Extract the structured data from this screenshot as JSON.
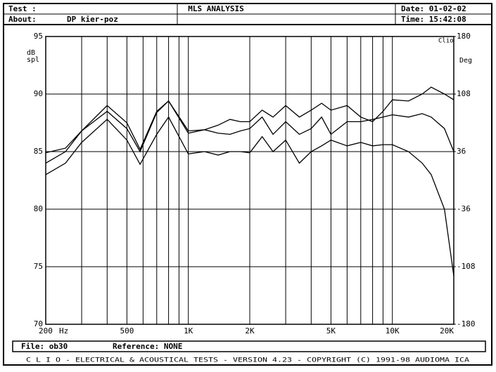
{
  "header": {
    "test": "Test :",
    "about": "About:",
    "about_value": "DP kier-poz",
    "date": "Date: 01-02-02",
    "time": "Time: 15:42:08"
  },
  "chart_data": {
    "type": "line",
    "title": "MLS ANALYSIS",
    "y_label_top": "dB",
    "y_label_bottom": "spl",
    "y2_label": "Deg",
    "brand": "Clio",
    "x_unit": "Hz",
    "x": [
      200,
      250,
      300,
      400,
      500,
      580,
      700,
      800,
      1000,
      1200,
      1400,
      1600,
      1800,
      2000,
      2300,
      2600,
      3000,
      3500,
      4000,
      4500,
      5000,
      6000,
      7000,
      8000,
      9000,
      10000,
      12000,
      14000,
      15500,
      18000,
      20000
    ],
    "series": [
      {
        "color": "#000000",
        "values": [
          84.9,
          85.3,
          86.8,
          89.0,
          87.5,
          85.2,
          88.5,
          89.4,
          86.8,
          86.9,
          87.3,
          87.8,
          87.6,
          87.6,
          88.6,
          88.0,
          89.0,
          88.0,
          88.6,
          89.2,
          88.6,
          89.0,
          88.0,
          87.6,
          88.5,
          89.5,
          89.4,
          90.0,
          90.6,
          90.0,
          89.5
        ]
      },
      {
        "color": "#000000",
        "values": [
          84.0,
          85.0,
          86.8,
          88.5,
          87.0,
          85.0,
          88.4,
          89.4,
          86.6,
          86.9,
          86.6,
          86.5,
          86.8,
          87.0,
          88.0,
          86.5,
          87.6,
          86.5,
          87.0,
          88.0,
          86.5,
          87.6,
          87.6,
          87.8,
          88.0,
          88.2,
          88.0,
          88.3,
          88.0,
          87.0,
          85.0
        ]
      },
      {
        "color": "#000000",
        "values": [
          83.0,
          84.0,
          85.8,
          87.8,
          86.0,
          83.9,
          86.5,
          88.0,
          84.8,
          85.0,
          84.7,
          85.0,
          85.0,
          84.9,
          86.3,
          85.0,
          86.0,
          84.0,
          85.0,
          85.5,
          86.0,
          85.5,
          85.8,
          85.5,
          85.6,
          85.6,
          85.0,
          84.0,
          83.0,
          80.0,
          74.2
        ]
      }
    ],
    "log_x": true,
    "grid": true,
    "xlim": [
      200,
      20000
    ],
    "xticks": [
      200,
      500,
      {
        "value": 1000,
        "label": "1K"
      },
      {
        "value": 2000,
        "label": "2K"
      },
      {
        "value": 5000,
        "label": "5K"
      },
      {
        "value": 10000,
        "label": "10K"
      },
      {
        "value": 20000,
        "label": "20K"
      }
    ],
    "xminor": [
      300,
      400,
      600,
      700,
      800,
      900,
      3000,
      4000,
      6000,
      7000,
      8000,
      9000
    ],
    "ylim": [
      70,
      95
    ],
    "yticks": [
      70,
      75,
      80,
      85,
      90,
      95
    ],
    "y2lim": [
      -180,
      180
    ],
    "y2ticks": [
      -180,
      -108,
      -36,
      36,
      108,
      180
    ]
  },
  "footer": {
    "file": "File: ob30",
    "reference": "Reference: NONE",
    "credits": "C L I O  -  ELECTRICAL & ACOUSTICAL TESTS  -  VERSION 4.23  -  COPYRIGHT (C) 1991-98 AUDIOMA ICA"
  }
}
